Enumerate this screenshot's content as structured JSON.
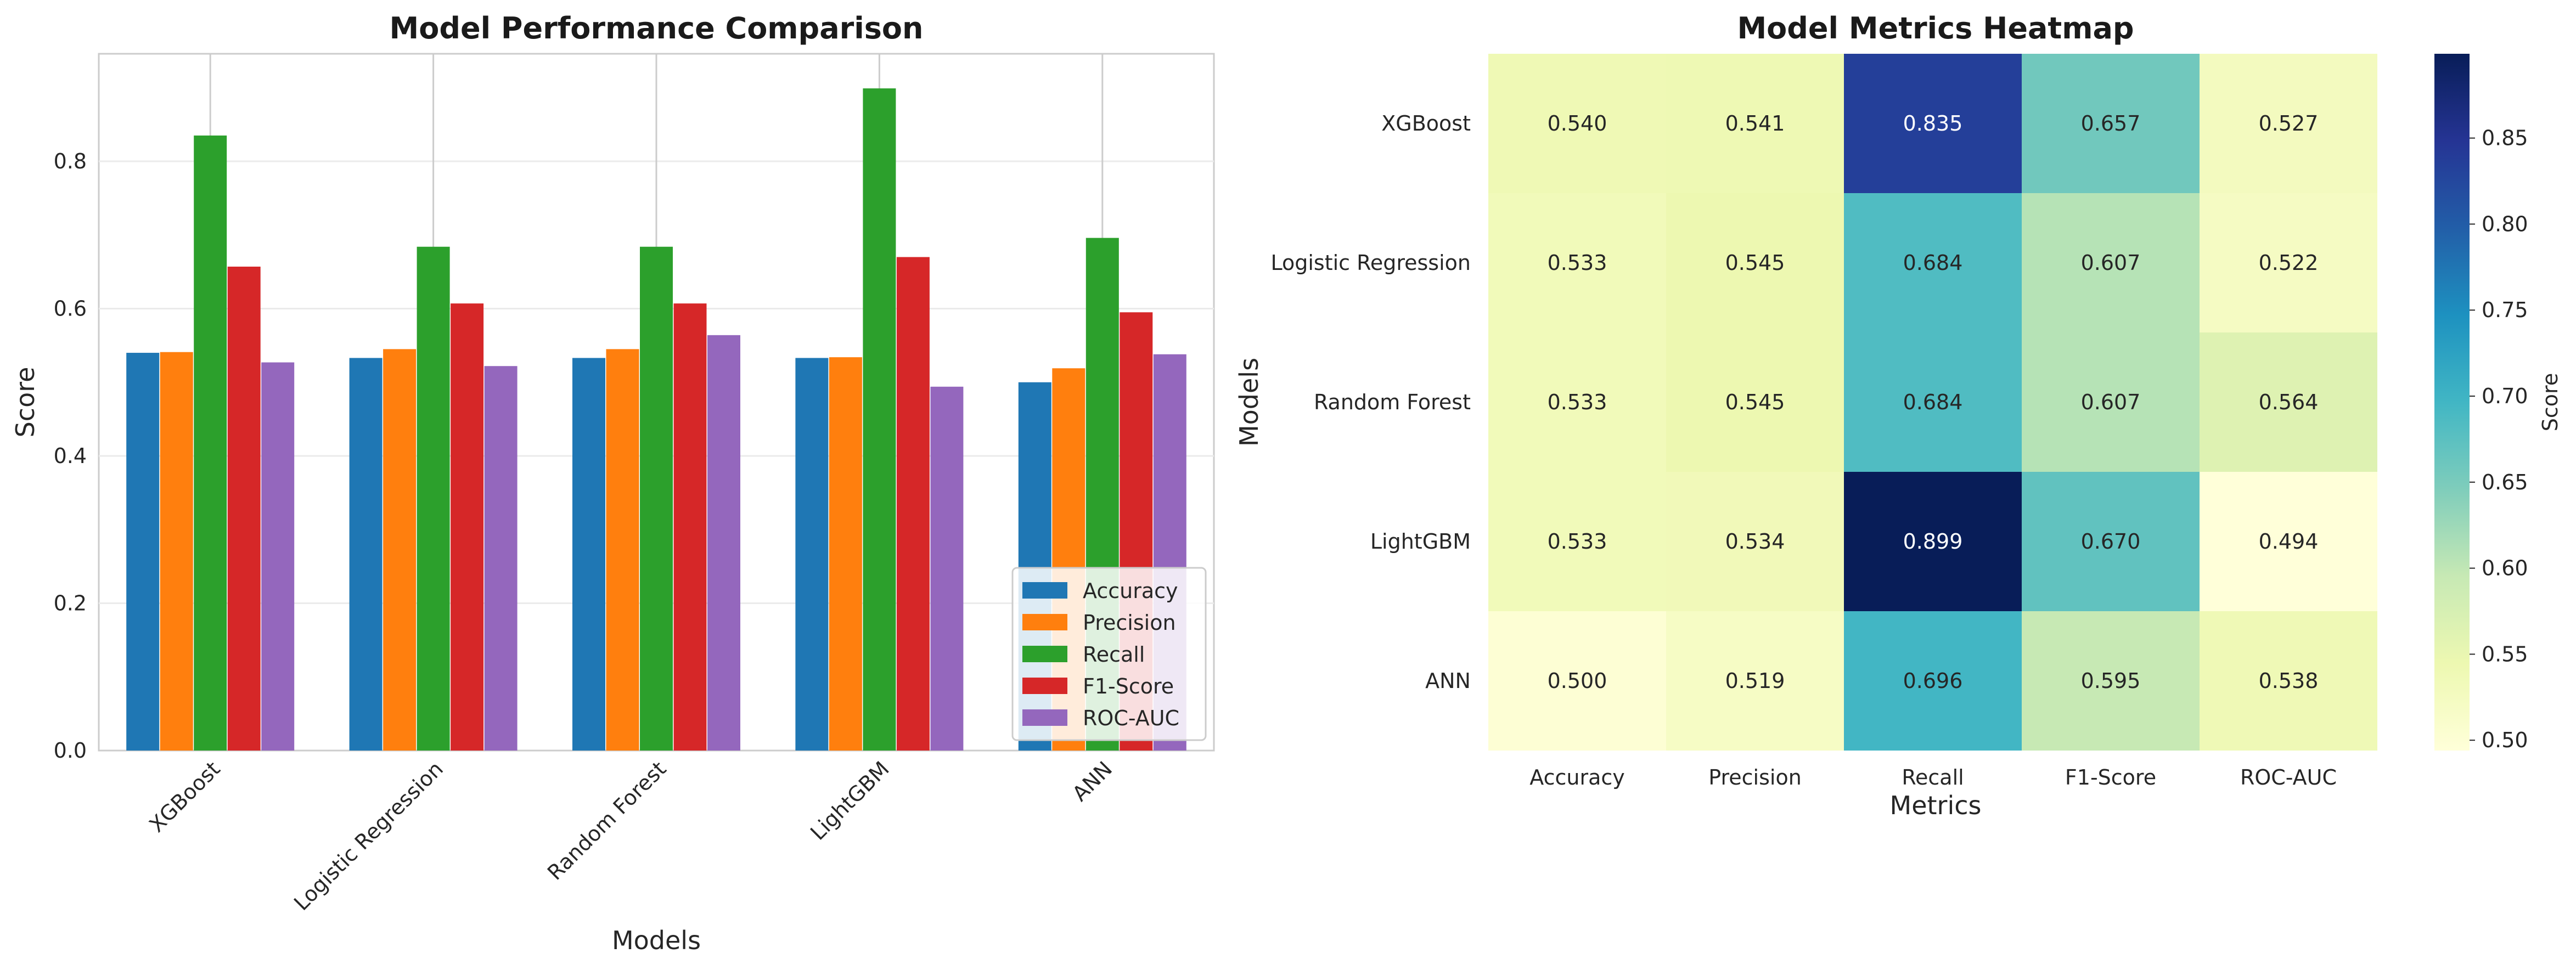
{
  "chart_data": [
    {
      "type": "bar",
      "title": "Model Performance Comparison",
      "xlabel": "Models",
      "ylabel": "Score",
      "categories": [
        "XGBoost",
        "Logistic Regression",
        "Random Forest",
        "LightGBM",
        "ANN"
      ],
      "series": [
        {
          "name": "Accuracy",
          "color": "#1f77b4",
          "values": [
            0.54,
            0.533,
            0.533,
            0.533,
            0.5
          ]
        },
        {
          "name": "Precision",
          "color": "#ff7f0e",
          "values": [
            0.541,
            0.545,
            0.545,
            0.534,
            0.519
          ]
        },
        {
          "name": "Recall",
          "color": "#2ca02c",
          "values": [
            0.835,
            0.684,
            0.684,
            0.899,
            0.696
          ]
        },
        {
          "name": "F1-Score",
          "color": "#d62728",
          "values": [
            0.657,
            0.607,
            0.607,
            0.67,
            0.595
          ]
        },
        {
          "name": "ROC-AUC",
          "color": "#9467bd",
          "values": [
            0.527,
            0.522,
            0.564,
            0.494,
            0.538
          ]
        }
      ],
      "ylim": [
        0,
        0.946
      ],
      "yticks": [
        "0.0",
        "0.2",
        "0.4",
        "0.6",
        "0.8"
      ],
      "grid": true,
      "legend_position": "lower-right"
    },
    {
      "type": "heatmap",
      "title": "Model Metrics Heatmap",
      "xlabel": "Metrics",
      "ylabel": "Models",
      "rows": [
        "XGBoost",
        "Logistic Regression",
        "Random Forest",
        "LightGBM",
        "ANN"
      ],
      "columns": [
        "Accuracy",
        "Precision",
        "Recall",
        "F1-Score",
        "ROC-AUC"
      ],
      "values": [
        [
          0.54,
          0.541,
          0.835,
          0.657,
          0.527
        ],
        [
          0.533,
          0.545,
          0.684,
          0.607,
          0.522
        ],
        [
          0.533,
          0.545,
          0.684,
          0.607,
          0.564
        ],
        [
          0.533,
          0.534,
          0.899,
          0.67,
          0.494
        ],
        [
          0.5,
          0.519,
          0.696,
          0.595,
          0.538
        ]
      ],
      "cell_labels": [
        [
          "0.540",
          "0.541",
          "0.835",
          "0.657",
          "0.527"
        ],
        [
          "0.533",
          "0.545",
          "0.684",
          "0.607",
          "0.522"
        ],
        [
          "0.533",
          "0.545",
          "0.684",
          "0.607",
          "0.564"
        ],
        [
          "0.533",
          "0.534",
          "0.899",
          "0.670",
          "0.494"
        ],
        [
          "0.500",
          "0.519",
          "0.696",
          "0.595",
          "0.538"
        ]
      ],
      "colormap": "YlGnBu",
      "vmin": 0.494,
      "vmax": 0.899,
      "colorbar_label": "Score",
      "colorbar_ticks": [
        "0.50",
        "0.55",
        "0.60",
        "0.65",
        "0.70",
        "0.75",
        "0.80",
        "0.85"
      ]
    }
  ]
}
